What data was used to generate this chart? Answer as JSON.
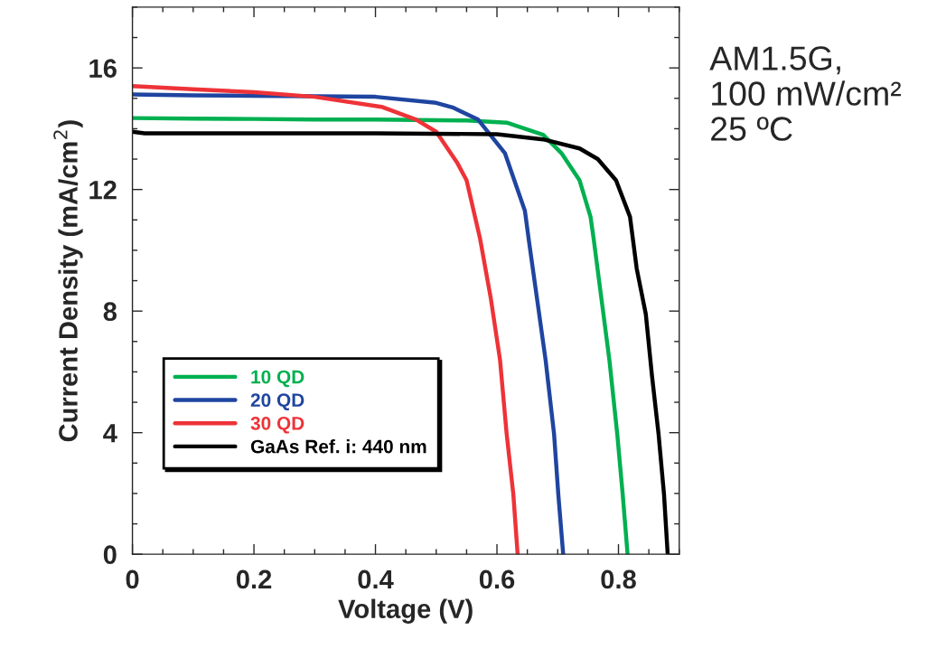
{
  "chart_data": {
    "type": "line",
    "xlabel": "Voltage (V)",
    "ylabel": "Current Density (mA/cm$^{2}$)",
    "annotations": [
      "AM1.5G,\n100 mW/cm²\n25 ºC"
    ],
    "xlim": [
      0,
      0.9
    ],
    "xticks": [
      0,
      0.2,
      0.4,
      0.6,
      0.8
    ],
    "ylim": [
      0,
      18
    ],
    "yticks": [
      0,
      4,
      8,
      12,
      16
    ],
    "grid": false,
    "legend": "bottom left",
    "marker": "none",
    "line_style": "solid",
    "series": [
      {
        "name": "10 QD",
        "color": "#00b050",
        "x": [
          0,
          0.1,
          0.2,
          0.3,
          0.4,
          0.5,
          0.55,
          0.616,
          0.676,
          0.706,
          0.736,
          0.754,
          0.759,
          0.772,
          0.785,
          0.798,
          0.807,
          0.815
        ],
        "values": [
          14.35,
          14.33,
          14.32,
          14.3,
          14.3,
          14.28,
          14.27,
          14.2,
          13.8,
          13.2,
          12.3,
          11.1,
          10.4,
          8.4,
          6.4,
          3.95,
          1.96,
          0
        ]
      },
      {
        "name": "20 QD",
        "color": "#1f45a0",
        "x": [
          0,
          0.1,
          0.2,
          0.3,
          0.4,
          0.5,
          0.527,
          0.569,
          0.613,
          0.646,
          0.652,
          0.666,
          0.68,
          0.694,
          0.701,
          0.709
        ],
        "values": [
          15.13,
          15.1,
          15.08,
          15.07,
          15.05,
          14.85,
          14.7,
          14.3,
          13.2,
          11.3,
          10.4,
          8.4,
          6.4,
          3.95,
          1.96,
          0
        ]
      },
      {
        "name": "30 QD",
        "color": "#ee3338",
        "x": [
          0,
          0.1,
          0.2,
          0.3,
          0.41,
          0.467,
          0.5,
          0.534,
          0.55,
          0.572,
          0.59,
          0.605,
          0.616,
          0.627,
          0.634
        ],
        "values": [
          15.4,
          15.3,
          15.2,
          15.05,
          14.72,
          14.3,
          13.9,
          12.9,
          12.3,
          10.4,
          8.4,
          6.4,
          3.95,
          1.96,
          0
        ]
      },
      {
        "name": "GaAs Ref. i: 440 nm",
        "color": "#000000",
        "x": [
          0,
          0.02,
          0.2,
          0.4,
          0.6,
          0.676,
          0.736,
          0.766,
          0.796,
          0.819,
          0.83,
          0.845,
          0.855,
          0.866,
          0.875,
          0.881
        ],
        "values": [
          13.9,
          13.85,
          13.85,
          13.85,
          13.82,
          13.65,
          13.35,
          13.0,
          12.3,
          11.1,
          9.4,
          7.9,
          5.9,
          3.95,
          1.96,
          0
        ]
      }
    ]
  }
}
